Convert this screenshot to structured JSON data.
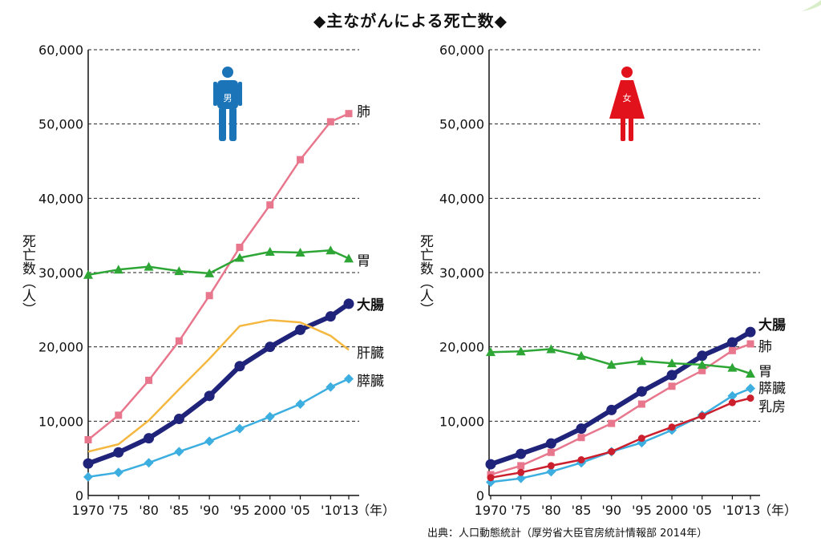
{
  "title": "◆主ながんによる死亡数◆",
  "source": "出典：人口動態統計（厚労省大臣官房統計情報部 2014年）",
  "icons": {
    "male": "male-figure-icon",
    "female": "female-figure-icon",
    "male_glyph": "男",
    "female_glyph": "女"
  },
  "colors": {
    "lung": "#e8778d",
    "stomach": "#2ea636",
    "colon": "#1f237a",
    "liver": "#f4b841",
    "pancreas": "#3daee0",
    "breast": "#cc1f2e",
    "male_icon": "#1b73b8",
    "female_icon": "#e2121c"
  },
  "chart_data": [
    {
      "type": "line",
      "panel": "male",
      "ylabel": "死亡数（人）",
      "xlabel": "（年）",
      "x": [
        1970,
        1975,
        1980,
        1985,
        1990,
        1995,
        2000,
        2005,
        2010,
        2013
      ],
      "x_tick_labels": [
        "1970",
        "'75",
        "'80",
        "'85",
        "'90",
        "'95",
        "2000",
        "'05",
        "'10",
        "'13"
      ],
      "ylim": [
        0,
        60000
      ],
      "y_ticks": [
        0,
        10000,
        20000,
        30000,
        40000,
        50000,
        60000
      ],
      "y_tick_labels": [
        "0",
        "10,000",
        "20,000",
        "30,000",
        "40,000",
        "50,000",
        "60,000"
      ],
      "grid": true,
      "series": [
        {
          "name": "肺",
          "key": "lung",
          "values": [
            7500,
            10800,
            15500,
            20800,
            26900,
            33400,
            39100,
            45200,
            50300,
            51400
          ]
        },
        {
          "name": "胃",
          "key": "stomach",
          "values": [
            29700,
            30400,
            30800,
            30200,
            29900,
            32000,
            32800,
            32700,
            33000,
            31900
          ]
        },
        {
          "name": "大腸",
          "key": "colon",
          "bold": true,
          "values": [
            4300,
            5800,
            7700,
            10300,
            13400,
            17400,
            20000,
            22300,
            24100,
            25800
          ]
        },
        {
          "name": "肝臓",
          "key": "liver",
          "values": [
            5900,
            6900,
            10100,
            14300,
            18400,
            22800,
            23600,
            23300,
            21500,
            19600
          ]
        },
        {
          "name": "膵臓",
          "key": "pancreas",
          "values": [
            2500,
            3100,
            4400,
            5900,
            7300,
            9000,
            10600,
            12300,
            14600,
            15700
          ]
        }
      ]
    },
    {
      "type": "line",
      "panel": "female",
      "ylabel": "死亡数（人）",
      "xlabel": "（年）",
      "x": [
        1970,
        1975,
        1980,
        1985,
        1990,
        1995,
        2000,
        2005,
        2010,
        2013
      ],
      "x_tick_labels": [
        "1970",
        "'75",
        "'80",
        "'85",
        "'90",
        "'95",
        "2000",
        "'05",
        "'10",
        "'13"
      ],
      "ylim": [
        0,
        60000
      ],
      "y_ticks": [
        0,
        10000,
        20000,
        30000,
        40000,
        50000,
        60000
      ],
      "y_tick_labels": [
        "0",
        "10,000",
        "20,000",
        "30,000",
        "40,000",
        "50,000",
        "60,000"
      ],
      "grid": true,
      "series": [
        {
          "name": "大腸",
          "key": "colon",
          "bold": true,
          "values": [
            4200,
            5600,
            7000,
            9000,
            11500,
            14000,
            16200,
            18800,
            20600,
            22000
          ]
        },
        {
          "name": "肺",
          "key": "lung",
          "values": [
            2800,
            4000,
            5800,
            7800,
            9700,
            12300,
            14700,
            16800,
            19500,
            20400
          ]
        },
        {
          "name": "胃",
          "key": "stomach",
          "values": [
            19300,
            19400,
            19700,
            18800,
            17600,
            18100,
            17800,
            17600,
            17200,
            16400
          ]
        },
        {
          "name": "膵臓",
          "key": "pancreas",
          "values": [
            1800,
            2300,
            3200,
            4400,
            5900,
            7100,
            8800,
            10800,
            13400,
            14400
          ]
        },
        {
          "name": "乳房",
          "key": "breast",
          "values": [
            2400,
            3100,
            4000,
            4800,
            5900,
            7700,
            9200,
            10700,
            12500,
            13100
          ]
        }
      ]
    }
  ]
}
